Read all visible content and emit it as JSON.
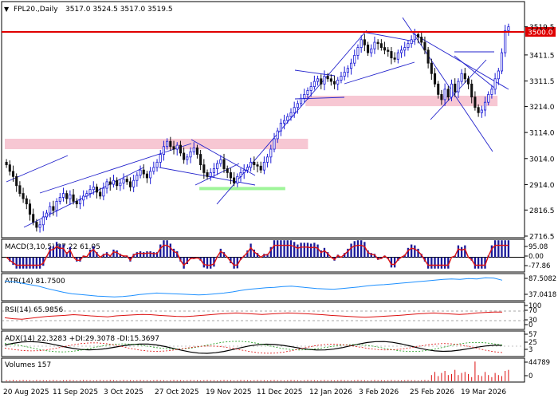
{
  "header": {
    "symbol": "FPL20.,Daily",
    "ohlc": "3517.0 3524.5 3517.0 3519.5"
  },
  "colors": {
    "up": "#1b1bd6",
    "down": "#111111",
    "level_line": "#e00000",
    "level_label_bg": "#e00000",
    "pink_zone": "#f7c7d3",
    "green_zone": "#9ff59a",
    "trend_line": "#2222cc",
    "macd_hist": "#1a1a9a",
    "macd_signal": "#dd1111",
    "atr_line": "#1e90ff",
    "rsi_line": "#dd1111",
    "adx_line": "#000000",
    "diplus_line": "#1a9a1a",
    "diminus_line": "#dd1111",
    "volume": "#dd1111",
    "grid_text": "#000000"
  },
  "chart_data": [
    {
      "type": "candlestick",
      "title": "FPL20.,Daily",
      "ylim": [
        2716.5,
        3555
      ],
      "price_ticks": [
        "3519.5",
        "3411.5",
        "3311.5",
        "3214.0",
        "3114.0",
        "3014.0",
        "2914.0",
        "2816.5",
        "2716.5"
      ],
      "x_tick_labels": [
        "20 Aug 2025",
        "11 Sep 2025",
        "3 Oct 2025",
        "27 Oct 2025",
        "19 Nov 2025",
        "11 Dec 2025",
        "12 Jan 2026",
        "3 Feb 2026",
        "25 Feb 2026",
        "19 Mar 2026"
      ],
      "levels": [
        {
          "label": "3500.0",
          "price": 3500.0
        }
      ],
      "last_price": "3519.5",
      "closes": [
        2990,
        2965,
        2945,
        2910,
        2880,
        2860,
        2840,
        2800,
        2770,
        2750,
        2760,
        2790,
        2805,
        2830,
        2815,
        2850,
        2865,
        2880,
        2860,
        2875,
        2850,
        2840,
        2855,
        2870,
        2880,
        2895,
        2905,
        2885,
        2870,
        2900,
        2925,
        2915,
        2930,
        2910,
        2920,
        2935,
        2925,
        2905,
        2930,
        2950,
        2970,
        2955,
        2940,
        2965,
        2980,
        3000,
        3030,
        3060,
        3080,
        3060,
        3050,
        3065,
        3035,
        3010,
        3020,
        3040,
        3055,
        3030,
        2990,
        2960,
        2945,
        2960,
        2975,
        2995,
        3010,
        2975,
        2960,
        2940,
        2920,
        2945,
        2960,
        2970,
        2980,
        3000,
        2990,
        2985,
        2970,
        3000,
        3020,
        3050,
        3090,
        3120,
        3150,
        3160,
        3175,
        3190,
        3210,
        3225,
        3245,
        3260,
        3275,
        3290,
        3310,
        3320,
        3300,
        3330,
        3320,
        3310,
        3300,
        3315,
        3330,
        3345,
        3360,
        3380,
        3410,
        3440,
        3470,
        3450,
        3420,
        3435,
        3460,
        3455,
        3440,
        3430,
        3425,
        3400,
        3395,
        3420,
        3430,
        3440,
        3455,
        3470,
        3490,
        3480,
        3460,
        3430,
        3380,
        3340,
        3300,
        3260,
        3240,
        3280,
        3250,
        3300,
        3270,
        3310,
        3340,
        3320,
        3300,
        3250,
        3210,
        3190,
        3200,
        3230,
        3260,
        3280,
        3320,
        3350,
        3420,
        3505,
        3519.5
      ],
      "pink_zones": [
        {
          "price_from": 3215,
          "price_to": 3255,
          "label": ""
        },
        {
          "price_from": 3050,
          "price_to": 3090,
          "label": ""
        }
      ],
      "green_zones": [
        {
          "price_from": 2895,
          "price_to": 2905,
          "label": ""
        }
      ]
    },
    {
      "type": "bar",
      "title": "MACD(3,10,5) 87.22 61.05",
      "ticks": [
        "95.08",
        "0.00",
        "-77.86"
      ],
      "ylim": [
        -77.86,
        95.08
      ]
    },
    {
      "type": "line",
      "title": "ATR(14) 81.7500",
      "ticks": [
        "87.5082",
        "37.0418"
      ],
      "ylim": [
        37.0418,
        87.5082
      ],
      "values": [
        80,
        78,
        74,
        70,
        66,
        60,
        55,
        50,
        46,
        44,
        42,
        40,
        39,
        38,
        39,
        41,
        44,
        46,
        48,
        47,
        46,
        45,
        44,
        43,
        44,
        46,
        48,
        51,
        55,
        58,
        60,
        62,
        63,
        65,
        66,
        64,
        62,
        60,
        59,
        58,
        60,
        62,
        64,
        67,
        69,
        70,
        72,
        74,
        76,
        78,
        80,
        82,
        84,
        85,
        84,
        86,
        85,
        88,
        87.5,
        81.75
      ]
    },
    {
      "type": "line",
      "title": "RSI(14) 65.9856",
      "ticks": [
        "100",
        "70",
        "30",
        "0"
      ],
      "ylim": [
        0,
        100
      ],
      "values": [
        42,
        38,
        36,
        40,
        44,
        48,
        50,
        52,
        55,
        53,
        50,
        48,
        46,
        50,
        52,
        54,
        56,
        55,
        52,
        50,
        48,
        47,
        49,
        52,
        55,
        58,
        60,
        62,
        60,
        58,
        56,
        58,
        60,
        62,
        61,
        59,
        57,
        55,
        52,
        50,
        48,
        46,
        44,
        46,
        48,
        50,
        52,
        55,
        58,
        60,
        62,
        60,
        58,
        56,
        58,
        62,
        64,
        66,
        65.9856
      ]
    },
    {
      "type": "line",
      "title": "ADX(14) 22.3283 +DI:29.3078 -DI:15.3697",
      "ticks": [
        "57",
        "25",
        "3"
      ],
      "ylim": [
        3,
        57
      ]
    },
    {
      "type": "bar",
      "title": "Volumes 157",
      "ticks": [
        "44789",
        "0"
      ],
      "ylim": [
        0,
        44789
      ]
    }
  ]
}
